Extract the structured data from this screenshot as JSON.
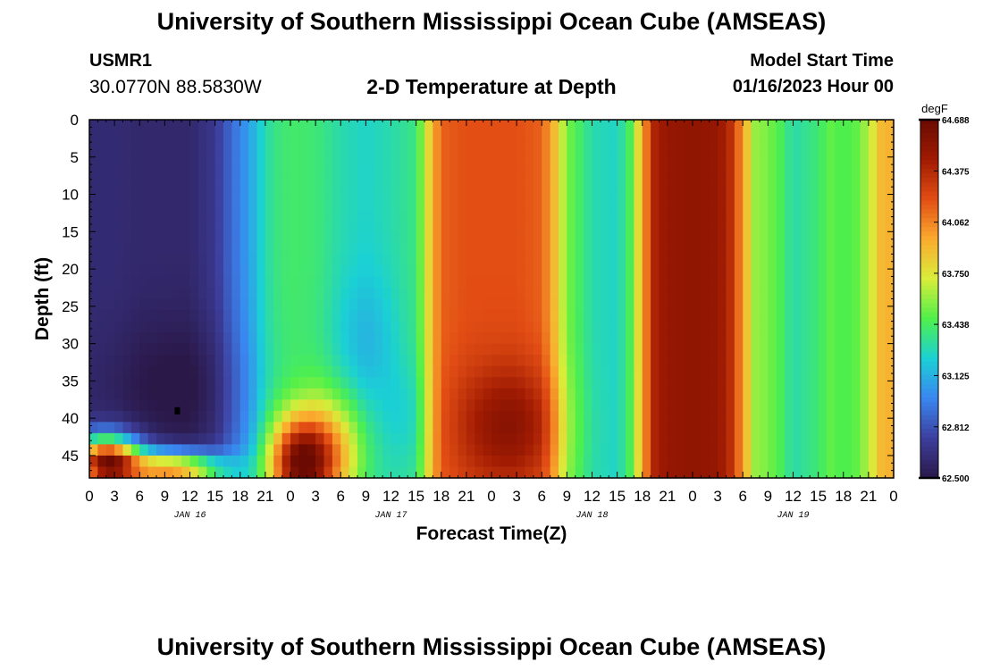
{
  "header": {
    "title": "University of Southern Mississippi Ocean Cube (AMSEAS)",
    "station": "USMR1",
    "coordinates": "30.0770N  88.5830W",
    "plot_title": "2-D Temperature at Depth",
    "model_start_label": "Model Start Time",
    "model_start_value": "01/16/2023 Hour 00"
  },
  "footer": {
    "title": "University of Southern Mississippi Ocean Cube (AMSEAS)"
  },
  "chart_data": {
    "type": "heatmap",
    "xlabel": "Forecast Time(Z)",
    "ylabel": "Depth (ft)",
    "x_ticks": [
      "0",
      "3",
      "6",
      "9",
      "12",
      "15",
      "18",
      "21",
      "0",
      "3",
      "6",
      "9",
      "12",
      "15",
      "18",
      "21",
      "0",
      "3",
      "6",
      "9",
      "12",
      "15",
      "18",
      "21",
      "0",
      "3",
      "6",
      "9",
      "12",
      "15",
      "18",
      "21",
      "0"
    ],
    "x_hours": [
      0,
      3,
      6,
      9,
      12,
      15,
      18,
      21,
      24,
      27,
      30,
      33,
      36,
      39,
      42,
      45,
      48,
      51,
      54,
      57,
      60,
      63,
      66,
      69,
      72,
      75,
      78,
      81,
      84,
      87,
      90,
      93,
      96
    ],
    "x_range": [
      0,
      96
    ],
    "day_labels": [
      {
        "label": "JAN 16",
        "hour": 12
      },
      {
        "label": "JAN 17",
        "hour": 36
      },
      {
        "label": "JAN 18",
        "hour": 60
      },
      {
        "label": "JAN 19",
        "hour": 84
      }
    ],
    "y_ticks": [
      "0",
      "5",
      "10",
      "15",
      "20",
      "25",
      "30",
      "35",
      "40",
      "45"
    ],
    "y_values": [
      0,
      5,
      10,
      15,
      20,
      25,
      30,
      35,
      40,
      45
    ],
    "y_range": [
      0,
      48
    ],
    "colorbar": {
      "unit": "degF",
      "min": 62.5,
      "max": 64.688,
      "ticks": [
        "64.688",
        "64.375",
        "64.062",
        "63.750",
        "63.438",
        "63.125",
        "62.812",
        "62.500"
      ],
      "tick_values": [
        64.688,
        64.375,
        64.062,
        63.75,
        63.438,
        63.125,
        62.812,
        62.5
      ],
      "colors": [
        "#2a1848",
        "#3d3f9e",
        "#3a86f0",
        "#1bd0d5",
        "#4ff04a",
        "#d9ed3a",
        "#fbab2e",
        "#e24d14",
        "#a01b02",
        "#6a0a02"
      ]
    },
    "hour_bands": [
      {
        "h": 0,
        "t": 62.62
      },
      {
        "h": 3,
        "t": 62.62
      },
      {
        "h": 6,
        "t": 62.6
      },
      {
        "h": 9,
        "t": 62.6
      },
      {
        "h": 12,
        "t": 62.6
      },
      {
        "h": 15,
        "t": 62.7
      },
      {
        "h": 16.5,
        "t": 62.85
      },
      {
        "h": 18,
        "t": 62.98
      },
      {
        "h": 19.5,
        "t": 63.12
      },
      {
        "h": 21,
        "t": 63.3
      },
      {
        "h": 22.5,
        "t": 63.38
      },
      {
        "h": 24,
        "t": 63.42
      },
      {
        "h": 27,
        "t": 63.4
      },
      {
        "h": 30,
        "t": 63.3
      },
      {
        "h": 33,
        "t": 63.25
      },
      {
        "h": 36,
        "t": 63.3
      },
      {
        "h": 39,
        "t": 63.38
      },
      {
        "h": 40.5,
        "t": 63.8
      },
      {
        "h": 42,
        "t": 64.15
      },
      {
        "h": 45,
        "t": 64.2
      },
      {
        "h": 48,
        "t": 64.2
      },
      {
        "h": 51,
        "t": 64.2
      },
      {
        "h": 54,
        "t": 64.15
      },
      {
        "h": 55.5,
        "t": 63.9
      },
      {
        "h": 57,
        "t": 63.55
      },
      {
        "h": 60,
        "t": 63.3
      },
      {
        "h": 63,
        "t": 63.25
      },
      {
        "h": 64.5,
        "t": 63.45
      },
      {
        "h": 66,
        "t": 63.95
      },
      {
        "h": 67.5,
        "t": 64.4
      },
      {
        "h": 69,
        "t": 64.5
      },
      {
        "h": 72,
        "t": 64.52
      },
      {
        "h": 75,
        "t": 64.5
      },
      {
        "h": 76.5,
        "t": 64.35
      },
      {
        "h": 78,
        "t": 64.0
      },
      {
        "h": 79.5,
        "t": 63.6
      },
      {
        "h": 81,
        "t": 63.55
      },
      {
        "h": 82.5,
        "t": 63.45
      },
      {
        "h": 84,
        "t": 63.3
      },
      {
        "h": 87,
        "t": 63.4
      },
      {
        "h": 88.5,
        "t": 63.5
      },
      {
        "h": 90,
        "t": 63.45
      },
      {
        "h": 91.5,
        "t": 63.5
      },
      {
        "h": 93,
        "t": 63.65
      },
      {
        "h": 94.5,
        "t": 63.9
      },
      {
        "h": 96,
        "t": 63.95
      }
    ],
    "deep_features": [
      {
        "h": 11,
        "d": 36,
        "sh": 9,
        "sd": 9,
        "dt": -0.12
      },
      {
        "h": 25,
        "d": 46,
        "sh": 3.5,
        "sd": 6,
        "dt": 1.1
      },
      {
        "h": 29,
        "d": 45,
        "sh": 4,
        "sd": 8,
        "dt": 0.6
      },
      {
        "h": 33,
        "d": 30,
        "sh": 4,
        "sd": 9,
        "dt": -0.12
      },
      {
        "h": 38,
        "d": 40,
        "sh": 3,
        "sd": 7,
        "dt": -0.1
      },
      {
        "h": 50,
        "d": 41,
        "sh": 6,
        "sd": 8,
        "dt": 0.35
      },
      {
        "h": 2,
        "d": 46,
        "sh": 4,
        "sd": 3.5,
        "dt": 1.9
      },
      {
        "h": 10,
        "d": 47,
        "sh": 6,
        "sd": 2.5,
        "dt": 1.4
      }
    ],
    "marker": {
      "hour": 10.5,
      "depth": 39
    }
  }
}
